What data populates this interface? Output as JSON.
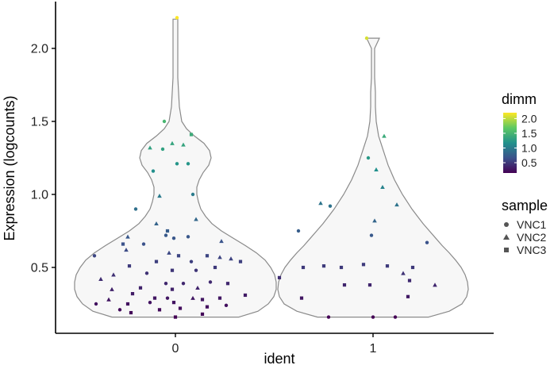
{
  "chart_data": {
    "type": "violin",
    "title": "",
    "xlabel": "ident",
    "ylabel": "Expression (logcounts)",
    "ylim": [
      0.1,
      2.3
    ],
    "yticks": [
      0.5,
      1.0,
      1.5,
      2.0
    ],
    "ytick_labels": [
      "0.5",
      "1.0",
      "1.5",
      "2.0"
    ],
    "categories": [
      "0",
      "1"
    ],
    "violins": [
      {
        "category": "0",
        "profile": [
          [
            0.16,
            80
          ],
          [
            0.2,
            104
          ],
          [
            0.25,
            117
          ],
          [
            0.3,
            124
          ],
          [
            0.35,
            127
          ],
          [
            0.4,
            127
          ],
          [
            0.45,
            125
          ],
          [
            0.5,
            120
          ],
          [
            0.55,
            113
          ],
          [
            0.6,
            102
          ],
          [
            0.65,
            88
          ],
          [
            0.7,
            73
          ],
          [
            0.75,
            58
          ],
          [
            0.8,
            46
          ],
          [
            0.85,
            38
          ],
          [
            0.9,
            32
          ],
          [
            0.95,
            29
          ],
          [
            1.0,
            27
          ],
          [
            1.05,
            27
          ],
          [
            1.1,
            30
          ],
          [
            1.15,
            35
          ],
          [
            1.2,
            42
          ],
          [
            1.25,
            45
          ],
          [
            1.3,
            43
          ],
          [
            1.35,
            36
          ],
          [
            1.4,
            24
          ],
          [
            1.45,
            14
          ],
          [
            1.5,
            8
          ],
          [
            1.6,
            5
          ],
          [
            1.7,
            4
          ],
          [
            1.8,
            3
          ],
          [
            1.9,
            3
          ],
          [
            2.0,
            3
          ],
          [
            2.1,
            3
          ],
          [
            2.2,
            3
          ]
        ]
      },
      {
        "category": "1",
        "profile": [
          [
            0.16,
            70
          ],
          [
            0.2,
            96
          ],
          [
            0.25,
            112
          ],
          [
            0.3,
            118
          ],
          [
            0.35,
            120
          ],
          [
            0.4,
            119
          ],
          [
            0.45,
            116
          ],
          [
            0.5,
            111
          ],
          [
            0.55,
            104
          ],
          [
            0.6,
            96
          ],
          [
            0.65,
            87
          ],
          [
            0.7,
            79
          ],
          [
            0.75,
            71
          ],
          [
            0.8,
            63
          ],
          [
            0.85,
            56
          ],
          [
            0.9,
            49
          ],
          [
            0.95,
            43
          ],
          [
            1.0,
            37
          ],
          [
            1.05,
            32
          ],
          [
            1.1,
            27
          ],
          [
            1.15,
            23
          ],
          [
            1.2,
            19
          ],
          [
            1.25,
            16
          ],
          [
            1.3,
            13
          ],
          [
            1.35,
            10
          ],
          [
            1.4,
            7
          ],
          [
            1.5,
            4
          ],
          [
            1.6,
            3
          ],
          [
            1.7,
            3
          ],
          [
            1.8,
            2
          ],
          [
            1.9,
            2
          ],
          [
            2.0,
            2
          ],
          [
            2.07,
            8
          ]
        ]
      }
    ],
    "points": [
      {
        "ident": "0",
        "dx": 2,
        "y": 2.21,
        "sample": "VNC1"
      },
      {
        "ident": "0",
        "dx": -14,
        "y": 1.5,
        "sample": "VNC1"
      },
      {
        "ident": "0",
        "dx": 20,
        "y": 1.41,
        "sample": "VNC3"
      },
      {
        "ident": "0",
        "dx": -4,
        "y": 1.35,
        "sample": "VNC2"
      },
      {
        "ident": "0",
        "dx": 10,
        "y": 1.34,
        "sample": "VNC2"
      },
      {
        "ident": "0",
        "dx": -32,
        "y": 1.32,
        "sample": "VNC2"
      },
      {
        "ident": "0",
        "dx": -16,
        "y": 1.31,
        "sample": "VNC1"
      },
      {
        "ident": "0",
        "dx": 16,
        "y": 1.21,
        "sample": "VNC1"
      },
      {
        "ident": "0",
        "dx": 2,
        "y": 1.21,
        "sample": "VNC1"
      },
      {
        "ident": "0",
        "dx": -28,
        "y": 1.16,
        "sample": "VNC1"
      },
      {
        "ident": "0",
        "dx": 22,
        "y": 1.0,
        "sample": "VNC1"
      },
      {
        "ident": "0",
        "dx": -20,
        "y": 0.99,
        "sample": "VNC2"
      },
      {
        "ident": "0",
        "dx": -50,
        "y": 0.9,
        "sample": "VNC1"
      },
      {
        "ident": "0",
        "dx": 26,
        "y": 0.83,
        "sample": "VNC2"
      },
      {
        "ident": "0",
        "dx": -24,
        "y": 0.8,
        "sample": "VNC2"
      },
      {
        "ident": "0",
        "dx": -10,
        "y": 0.75,
        "sample": "VNC3"
      },
      {
        "ident": "0",
        "dx": -12,
        "y": 0.72,
        "sample": "VNC1"
      },
      {
        "ident": "0",
        "dx": -60,
        "y": 0.71,
        "sample": "VNC2"
      },
      {
        "ident": "0",
        "dx": 16,
        "y": 0.71,
        "sample": "VNC1"
      },
      {
        "ident": "0",
        "dx": -2,
        "y": 0.7,
        "sample": "VNC1"
      },
      {
        "ident": "0",
        "dx": -66,
        "y": 0.66,
        "sample": "VNC3"
      },
      {
        "ident": "0",
        "dx": 58,
        "y": 0.68,
        "sample": "VNC2"
      },
      {
        "ident": "0",
        "dx": -40,
        "y": 0.66,
        "sample": "VNC1"
      },
      {
        "ident": "0",
        "dx": -62,
        "y": 0.62,
        "sample": "VNC2"
      },
      {
        "ident": "0",
        "dx": -102,
        "y": 0.58,
        "sample": "VNC1"
      },
      {
        "ident": "0",
        "dx": -8,
        "y": 0.6,
        "sample": "VNC2"
      },
      {
        "ident": "0",
        "dx": 4,
        "y": 0.58,
        "sample": "VNC3"
      },
      {
        "ident": "0",
        "dx": 40,
        "y": 0.58,
        "sample": "VNC3"
      },
      {
        "ident": "0",
        "dx": 56,
        "y": 0.57,
        "sample": "VNC2"
      },
      {
        "ident": "0",
        "dx": 20,
        "y": 0.54,
        "sample": "VNC1"
      },
      {
        "ident": "0",
        "dx": 70,
        "y": 0.56,
        "sample": "VNC2"
      },
      {
        "ident": "0",
        "dx": -24,
        "y": 0.54,
        "sample": "VNC3"
      },
      {
        "ident": "0",
        "dx": 82,
        "y": 0.54,
        "sample": "VNC3"
      },
      {
        "ident": "0",
        "dx": -58,
        "y": 0.51,
        "sample": "VNC3"
      },
      {
        "ident": "0",
        "dx": -4,
        "y": 0.48,
        "sample": "VNC3"
      },
      {
        "ident": "0",
        "dx": 50,
        "y": 0.5,
        "sample": "VNC3"
      },
      {
        "ident": "0",
        "dx": 26,
        "y": 0.48,
        "sample": "VNC1"
      },
      {
        "ident": "0",
        "dx": -36,
        "y": 0.46,
        "sample": "VNC1"
      },
      {
        "ident": "0",
        "dx": -78,
        "y": 0.45,
        "sample": "VNC2"
      },
      {
        "ident": "0",
        "dx": -94,
        "y": 0.42,
        "sample": "VNC2"
      },
      {
        "ident": "0",
        "dx": -12,
        "y": 0.39,
        "sample": "VNC1"
      },
      {
        "ident": "0",
        "dx": 44,
        "y": 0.4,
        "sample": "VNC1"
      },
      {
        "ident": "0",
        "dx": 10,
        "y": 0.39,
        "sample": "VNC1"
      },
      {
        "ident": "0",
        "dx": 66,
        "y": 0.39,
        "sample": "VNC3"
      },
      {
        "ident": "0",
        "dx": -80,
        "y": 0.35,
        "sample": "VNC2"
      },
      {
        "ident": "0",
        "dx": -44,
        "y": 0.36,
        "sample": "VNC3"
      },
      {
        "ident": "0",
        "dx": -4,
        "y": 0.35,
        "sample": "VNC3"
      },
      {
        "ident": "0",
        "dx": 28,
        "y": 0.36,
        "sample": "VNC2"
      },
      {
        "ident": "0",
        "dx": -54,
        "y": 0.32,
        "sample": "VNC3"
      },
      {
        "ident": "0",
        "dx": 88,
        "y": 0.31,
        "sample": "VNC3"
      },
      {
        "ident": "0",
        "dx": -26,
        "y": 0.29,
        "sample": "VNC3"
      },
      {
        "ident": "0",
        "dx": -84,
        "y": 0.28,
        "sample": "VNC2"
      },
      {
        "ident": "0",
        "dx": -10,
        "y": 0.29,
        "sample": "VNC1"
      },
      {
        "ident": "0",
        "dx": 22,
        "y": 0.29,
        "sample": "VNC2"
      },
      {
        "ident": "0",
        "dx": 34,
        "y": 0.28,
        "sample": "VNC3"
      },
      {
        "ident": "0",
        "dx": 56,
        "y": 0.29,
        "sample": "VNC3"
      },
      {
        "ident": "0",
        "dx": -100,
        "y": 0.25,
        "sample": "VNC1"
      },
      {
        "ident": "0",
        "dx": -60,
        "y": 0.25,
        "sample": "VNC3"
      },
      {
        "ident": "0",
        "dx": -32,
        "y": 0.26,
        "sample": "VNC1"
      },
      {
        "ident": "0",
        "dx": -2,
        "y": 0.26,
        "sample": "VNC3"
      },
      {
        "ident": "0",
        "dx": 40,
        "y": 0.23,
        "sample": "VNC3"
      },
      {
        "ident": "0",
        "dx": 64,
        "y": 0.24,
        "sample": "VNC1"
      },
      {
        "ident": "0",
        "dx": -70,
        "y": 0.21,
        "sample": "VNC1"
      },
      {
        "ident": "0",
        "dx": -20,
        "y": 0.21,
        "sample": "VNC3"
      },
      {
        "ident": "0",
        "dx": 6,
        "y": 0.22,
        "sample": "VNC3"
      },
      {
        "ident": "0",
        "dx": -56,
        "y": 0.19,
        "sample": "VNC3"
      },
      {
        "ident": "0",
        "dx": 34,
        "y": 0.18,
        "sample": "VNC3"
      },
      {
        "ident": "0",
        "dx": 0,
        "y": 0.16,
        "sample": "VNC3"
      },
      {
        "ident": "1",
        "dx": -8,
        "y": 2.07,
        "sample": "VNC1"
      },
      {
        "ident": "1",
        "dx": 14,
        "y": 1.4,
        "sample": "VNC2"
      },
      {
        "ident": "1",
        "dx": -6,
        "y": 1.25,
        "sample": "VNC1"
      },
      {
        "ident": "1",
        "dx": 4,
        "y": 1.17,
        "sample": "VNC2"
      },
      {
        "ident": "1",
        "dx": 12,
        "y": 1.05,
        "sample": "VNC2"
      },
      {
        "ident": "1",
        "dx": -66,
        "y": 0.94,
        "sample": "VNC2"
      },
      {
        "ident": "1",
        "dx": -54,
        "y": 0.92,
        "sample": "VNC1"
      },
      {
        "ident": "1",
        "dx": 30,
        "y": 0.93,
        "sample": "VNC2"
      },
      {
        "ident": "1",
        "dx": 2,
        "y": 0.82,
        "sample": "VNC2"
      },
      {
        "ident": "1",
        "dx": -94,
        "y": 0.75,
        "sample": "VNC1"
      },
      {
        "ident": "1",
        "dx": -2,
        "y": 0.72,
        "sample": "VNC1"
      },
      {
        "ident": "1",
        "dx": 68,
        "y": 0.67,
        "sample": "VNC1"
      },
      {
        "ident": "1",
        "dx": -62,
        "y": 0.51,
        "sample": "VNC3"
      },
      {
        "ident": "1",
        "dx": -12,
        "y": 0.52,
        "sample": "VNC3"
      },
      {
        "ident": "1",
        "dx": 18,
        "y": 0.51,
        "sample": "VNC3"
      },
      {
        "ident": "1",
        "dx": -88,
        "y": 0.5,
        "sample": "VNC3"
      },
      {
        "ident": "1",
        "dx": -40,
        "y": 0.5,
        "sample": "VNC3"
      },
      {
        "ident": "1",
        "dx": 50,
        "y": 0.5,
        "sample": "VNC3"
      },
      {
        "ident": "1",
        "dx": 38,
        "y": 0.46,
        "sample": "VNC2"
      },
      {
        "ident": "1",
        "dx": -118,
        "y": 0.43,
        "sample": "VNC3"
      },
      {
        "ident": "1",
        "dx": 46,
        "y": 0.41,
        "sample": "VNC3"
      },
      {
        "ident": "1",
        "dx": 78,
        "y": 0.38,
        "sample": "VNC2"
      },
      {
        "ident": "1",
        "dx": -36,
        "y": 0.38,
        "sample": "VNC3"
      },
      {
        "ident": "1",
        "dx": -4,
        "y": 0.38,
        "sample": "VNC3"
      },
      {
        "ident": "1",
        "dx": -90,
        "y": 0.29,
        "sample": "VNC3"
      },
      {
        "ident": "1",
        "dx": 44,
        "y": 0.3,
        "sample": "VNC3"
      },
      {
        "ident": "1",
        "dx": -56,
        "y": 0.16,
        "sample": "VNC1"
      },
      {
        "ident": "1",
        "dx": 0,
        "y": 0.16,
        "sample": "VNC1"
      },
      {
        "ident": "1",
        "dx": 28,
        "y": 0.16,
        "sample": "VNC1"
      }
    ],
    "color_legend": {
      "title": "dimm",
      "range": [
        0.15,
        2.2
      ],
      "ticks": [
        0.5,
        1.0,
        1.5,
        2.0
      ],
      "tick_labels": [
        "0.5",
        "1.0",
        "1.5",
        "2.0"
      ],
      "colormap": [
        "#440154",
        "#3b528b",
        "#21918c",
        "#5ec962",
        "#fde725"
      ]
    },
    "shape_legend": {
      "title": "sample",
      "items": [
        {
          "label": "VNC1",
          "shape": "circle"
        },
        {
          "label": "VNC2",
          "shape": "triangle"
        },
        {
          "label": "VNC3",
          "shape": "square"
        }
      ]
    },
    "grid": false,
    "legend_position": "right"
  }
}
